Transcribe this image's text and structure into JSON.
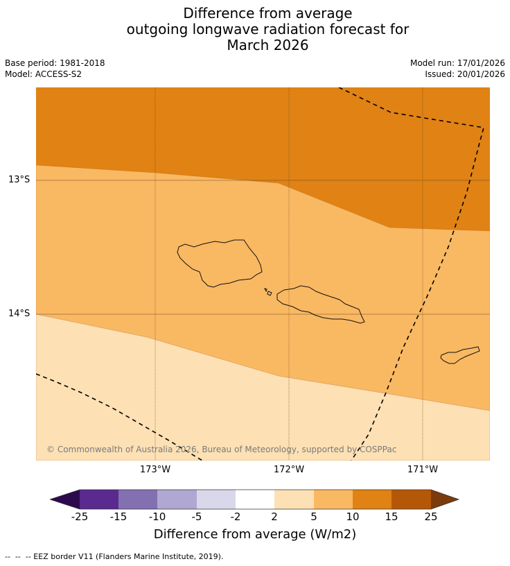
{
  "title": {
    "line1": "Difference from average",
    "line2": "outgoing longwave radiation forecast for",
    "line3": "March 2026"
  },
  "meta": {
    "base_period": "Base period: 1981-2018",
    "model": "Model: ACCESS-S2",
    "model_run": "Model run: 17/01/2026",
    "issued": "Issued: 20/01/2026"
  },
  "map": {
    "lat_labels": [
      "13°S",
      "14°S"
    ],
    "lon_labels": [
      "173°W",
      "172°W",
      "171°W"
    ],
    "copyright": "© Commonwealth of Australia 2026, Bureau of Meteorology, supported by COSPPac",
    "legend_note": "--  --  -- EEZ border V11 (Flanders Marine Institute, 2019)."
  },
  "colorbar": {
    "ticks": [
      "-25",
      "-15",
      "-10",
      "-5",
      "-2",
      "2",
      "5",
      "10",
      "15",
      "25"
    ],
    "colors": [
      "#2d0a4e",
      "#5a2a8e",
      "#8370b0",
      "#b0a8d2",
      "#d8d8ea",
      "#ffffff",
      "#fde0b4",
      "#f9b862",
      "#e08214",
      "#b45808",
      "#7d3a0a"
    ],
    "label": "Difference from average (W/m2)"
  }
}
